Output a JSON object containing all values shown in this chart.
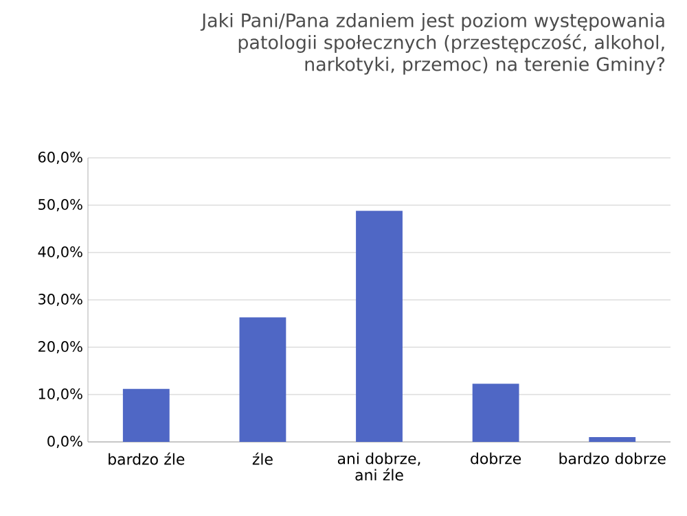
{
  "chart_data": {
    "type": "bar",
    "title": "Jaki Pani/Pana zdaniem jest poziom występowania patologii społecznych (przestępczość, alkohol, narkotyki, przemoc) na terenie Gminy?",
    "categories": [
      "bardzo źle",
      "źle",
      "ani dobrze, ani źle",
      "dobrze",
      "bardzo dobrze"
    ],
    "values": [
      11.2,
      26.3,
      48.8,
      12.3,
      1.0
    ],
    "color": "#4f67c5",
    "ylim": [
      0,
      60
    ],
    "yticks": [
      {
        "value": 0,
        "label": "0,0%"
      },
      {
        "value": 10,
        "label": "10,0%"
      },
      {
        "value": 20,
        "label": "20,0%"
      },
      {
        "value": 30,
        "label": "30,0%"
      },
      {
        "value": 40,
        "label": "40,0%"
      },
      {
        "value": 50,
        "label": "50,0%"
      },
      {
        "value": 60,
        "label": "60,0%"
      }
    ],
    "grid": "y"
  }
}
